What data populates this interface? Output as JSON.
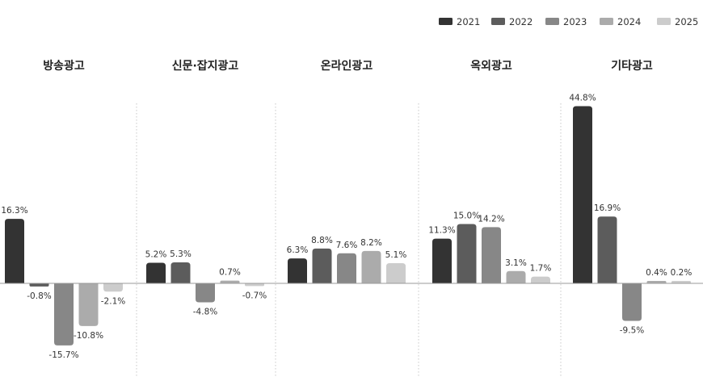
{
  "chart_data": {
    "type": "bar",
    "categories": [
      "방송광고",
      "신문·잡지광고",
      "온라인광고",
      "옥외광고",
      "기타광고"
    ],
    "series": [
      {
        "name": "2021",
        "color": "#333333",
        "values": [
          16.3,
          5.2,
          6.3,
          11.3,
          44.8
        ],
        "labels": [
          "16.3%",
          "5.2%",
          "6.3%",
          "11.3%",
          "44.8%"
        ]
      },
      {
        "name": "2022",
        "color": "#5c5c5c",
        "values": [
          -0.8,
          5.3,
          8.8,
          15.0,
          16.9
        ],
        "labels": [
          "-0.8%",
          "5.3%",
          "8.8%",
          "15.0%",
          "16.9%"
        ]
      },
      {
        "name": "2023",
        "color": "#878787",
        "values": [
          -15.7,
          -4.8,
          7.6,
          14.2,
          -9.5
        ],
        "labels": [
          "-15.7%",
          "-4.8%",
          "7.6%",
          "14.2%",
          "-9.5%"
        ]
      },
      {
        "name": "2024",
        "color": "#ababab",
        "values": [
          -10.8,
          0.7,
          8.2,
          3.1,
          0.4
        ],
        "labels": [
          "-10.8%",
          "0.7%",
          "8.2%",
          "3.1%",
          "0.4%"
        ]
      },
      {
        "name": "2025",
        "color": "#cccccc",
        "values": [
          -2.1,
          -0.7,
          5.1,
          1.7,
          0.2
        ],
        "labels": [
          "-2.1%",
          "-0.7%",
          "5.1%",
          "1.7%",
          "0.2%"
        ]
      }
    ],
    "title": "",
    "xlabel": "",
    "ylabel": "",
    "unit": "%",
    "ylim": [
      -21,
      48
    ],
    "grid": false,
    "legend_position": "top-right",
    "group_separators": "dotted"
  }
}
